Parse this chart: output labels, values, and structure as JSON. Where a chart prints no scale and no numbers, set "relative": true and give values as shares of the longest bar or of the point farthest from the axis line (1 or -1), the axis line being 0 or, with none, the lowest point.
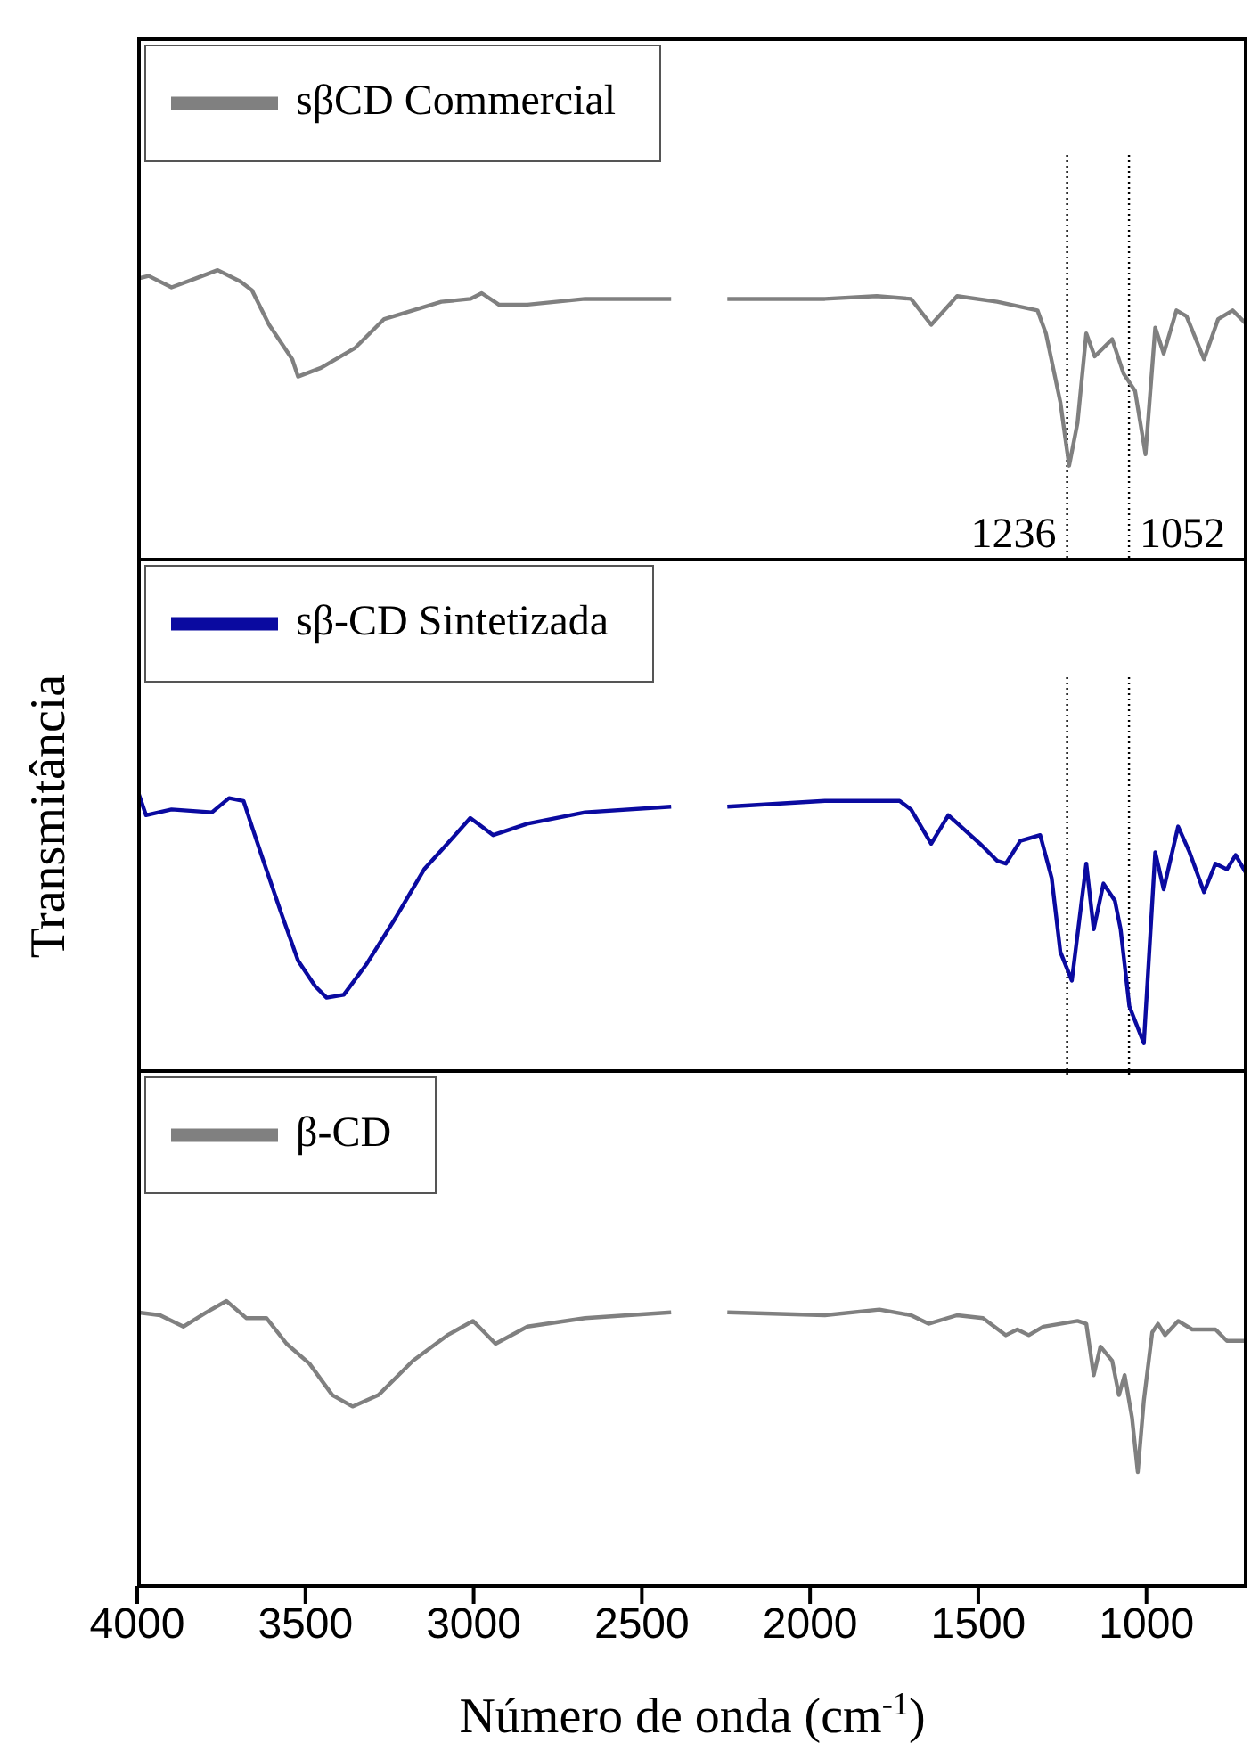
{
  "chart_data": [
    {
      "type": "line",
      "relative": true,
      "legend": "top left",
      "tick_labels": false,
      "xlim": [
        4000,
        700
      ],
      "xticks": [
        4000,
        3500,
        3000,
        2500,
        2000,
        1500,
        1000
      ],
      "x": [
        4000,
        3966,
        3898,
        3829,
        3761,
        3693,
        3659,
        3608,
        3539,
        3522,
        3454,
        3352,
        3266,
        3181,
        3096,
        3010,
        2976,
        2925,
        2840,
        2669,
        2413,
        2330,
        2246,
        1956,
        1802,
        1700,
        1640,
        1563,
        1444,
        1324,
        1299,
        1256,
        1230,
        1205,
        1179,
        1154,
        1102,
        1068,
        1034,
        1003,
        974,
        949,
        911,
        881,
        829,
        787,
        744,
        701
      ],
      "series": [
        {
          "name": "sβCD Commercial",
          "color": "#808080",
          "values": [
            0.97,
            0.98,
            0.94,
            0.97,
            1.0,
            0.96,
            0.93,
            0.81,
            0.69,
            0.63,
            0.66,
            0.73,
            0.83,
            0.86,
            0.89,
            0.9,
            0.92,
            0.88,
            0.88,
            0.9,
            0.9,
            null,
            0.9,
            0.9,
            0.91,
            0.9,
            0.81,
            0.91,
            0.89,
            0.86,
            0.78,
            0.54,
            0.32,
            0.47,
            0.78,
            0.7,
            0.76,
            0.64,
            0.58,
            0.36,
            0.8,
            0.71,
            0.86,
            0.84,
            0.69,
            0.83,
            0.86,
            0.81
          ]
        }
      ],
      "ref_lines": [
        {
          "axis": "x",
          "value": 1236,
          "label": "1236",
          "color": "#000000",
          "line_style": "dotted"
        },
        {
          "axis": "x",
          "value": 1052,
          "label": "1052",
          "color": "#000000",
          "line_style": "dotted"
        }
      ]
    },
    {
      "type": "line",
      "relative": true,
      "legend": "top left",
      "tick_labels": false,
      "ylabel": "Transmitância",
      "xlim": [
        4000,
        700
      ],
      "xticks": [
        4000,
        3500,
        3000,
        2500,
        2000,
        1500,
        1000
      ],
      "x": [
        4000,
        3974,
        3898,
        3778,
        3727,
        3684,
        3659,
        3625,
        3573,
        3522,
        3471,
        3437,
        3386,
        3317,
        3232,
        3147,
        3078,
        3010,
        2976,
        2942,
        2840,
        2669,
        2413,
        2330,
        2246,
        1956,
        1734,
        1700,
        1640,
        1589,
        1495,
        1444,
        1418,
        1375,
        1316,
        1282,
        1256,
        1222,
        1179,
        1157,
        1128,
        1094,
        1077,
        1051,
        1008,
        974,
        949,
        906,
        872,
        829,
        795,
        761,
        735,
        701
      ],
      "series": [
        {
          "name": "sβ-CD Sintetizada",
          "color": "#0a0aa0",
          "values": [
            1.0,
            0.91,
            0.93,
            0.92,
            0.97,
            0.96,
            0.87,
            0.75,
            0.57,
            0.4,
            0.31,
            0.27,
            0.28,
            0.39,
            0.55,
            0.72,
            0.81,
            0.9,
            0.87,
            0.84,
            0.88,
            0.92,
            0.94,
            null,
            0.94,
            0.96,
            0.96,
            0.93,
            0.81,
            0.91,
            0.81,
            0.75,
            0.74,
            0.82,
            0.84,
            0.69,
            0.43,
            0.33,
            0.74,
            0.51,
            0.67,
            0.61,
            0.51,
            0.24,
            0.11,
            0.78,
            0.65,
            0.87,
            0.78,
            0.64,
            0.74,
            0.72,
            0.77,
            0.7
          ]
        }
      ],
      "ref_lines": [
        {
          "axis": "x",
          "value": 1236,
          "color": "#000000",
          "line_style": "dotted"
        },
        {
          "axis": "x",
          "value": 1052,
          "color": "#000000",
          "line_style": "dotted"
        }
      ]
    },
    {
      "type": "line",
      "relative": true,
      "legend": "top left",
      "tick_labels": "x",
      "xlabel": "Número de onda (cm$^{-1}$)",
      "xlim": [
        4000,
        700
      ],
      "xticks": [
        4000,
        3500,
        3000,
        2500,
        2000,
        1500,
        1000
      ],
      "x": [
        4000,
        3932,
        3863,
        3795,
        3735,
        3676,
        3616,
        3556,
        3488,
        3420,
        3360,
        3283,
        3181,
        3078,
        3002,
        2968,
        2935,
        2840,
        2669,
        2413,
        2330,
        2246,
        1956,
        1794,
        1700,
        1648,
        1563,
        1486,
        1418,
        1384,
        1350,
        1307,
        1205,
        1179,
        1157,
        1137,
        1102,
        1082,
        1065,
        1043,
        1026,
        1008,
        983,
        966,
        945,
        906,
        864,
        795,
        761,
        701
      ],
      "series": [
        {
          "name": "β-CD",
          "color": "#808080",
          "values": [
            0.96,
            0.95,
            0.91,
            0.96,
            1.0,
            0.94,
            0.94,
            0.85,
            0.78,
            0.67,
            0.63,
            0.67,
            0.79,
            0.88,
            0.93,
            0.89,
            0.85,
            0.91,
            0.94,
            0.96,
            null,
            0.96,
            0.95,
            0.97,
            0.95,
            0.92,
            0.95,
            0.94,
            0.88,
            0.9,
            0.88,
            0.91,
            0.93,
            0.92,
            0.74,
            0.84,
            0.79,
            0.67,
            0.74,
            0.59,
            0.4,
            0.65,
            0.89,
            0.92,
            0.88,
            0.93,
            0.9,
            0.9,
            0.86,
            0.86
          ]
        }
      ]
    }
  ]
}
